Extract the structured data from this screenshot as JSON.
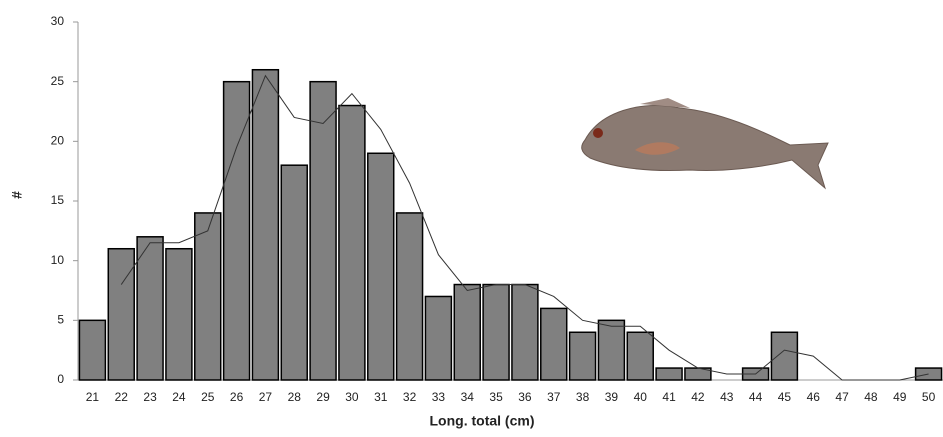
{
  "chart_data": {
    "type": "bar",
    "x_label": "Long. total (cm)",
    "y_label": "#",
    "categories": [
      "21",
      "22",
      "23",
      "24",
      "25",
      "26",
      "27",
      "28",
      "29",
      "30",
      "31",
      "32",
      "33",
      "34",
      "35",
      "36",
      "37",
      "38",
      "39",
      "40",
      "41",
      "42",
      "43",
      "44",
      "45",
      "46",
      "47",
      "48",
      "49",
      "50"
    ],
    "values": [
      5,
      11,
      12,
      11,
      14,
      25,
      26,
      18,
      25,
      23,
      19,
      14,
      7,
      8,
      8,
      8,
      6,
      4,
      5,
      4,
      1,
      1,
      0,
      1,
      4,
      0,
      0,
      0,
      0,
      1
    ],
    "line_values": [
      null,
      8,
      11.5,
      11.5,
      12.5,
      19.5,
      25.5,
      22,
      21.5,
      24,
      21,
      16.5,
      10.5,
      7.5,
      8,
      8,
      7,
      5,
      4.5,
      4.5,
      2.5,
      1,
      0.5,
      0.5,
      2.5,
      2,
      0,
      0,
      0,
      0.5
    ],
    "color": "#808080",
    "line_color": "#333333",
    "ylim": [
      0,
      30
    ],
    "yticks": [
      0,
      5,
      10,
      15,
      20,
      25,
      30
    ]
  }
}
